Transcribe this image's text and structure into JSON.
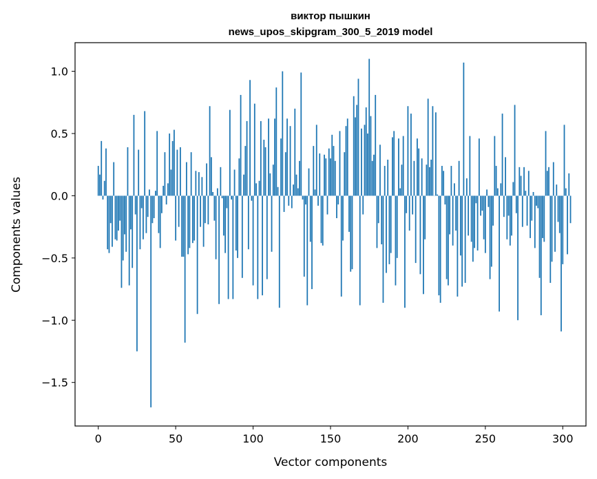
{
  "chart_data": {
    "type": "bar",
    "title": "виктор пышкин",
    "subtitle": "news_upos_skipgram_300_5_2019 model",
    "xlabel": "Vector components",
    "ylabel": "Components values",
    "xlim": [
      -15,
      315
    ],
    "ylim": [
      -1.85,
      1.23
    ],
    "xticks": [
      0,
      50,
      100,
      150,
      200,
      250,
      300
    ],
    "xtick_labels": [
      "0",
      "50",
      "100",
      "150",
      "200",
      "250",
      "300"
    ],
    "yticks": [
      -1.5,
      -1.0,
      -0.5,
      0.0,
      0.5,
      1.0
    ],
    "ytick_labels": [
      "−1.5",
      "−1.0",
      "−0.5",
      "0.0",
      "0.5",
      "1.0"
    ],
    "grid": false,
    "bar_color": "#1f77b4",
    "x_start": 0,
    "values": [
      0.24,
      0.17,
      0.44,
      -0.03,
      0.12,
      0.38,
      -0.43,
      -0.46,
      -0.22,
      -0.41,
      0.27,
      -0.35,
      -0.36,
      -0.28,
      -0.2,
      -0.74,
      -0.52,
      -0.31,
      -0.45,
      0.39,
      -0.72,
      -0.27,
      -0.58,
      0.65,
      -0.15,
      -1.25,
      0.37,
      -0.43,
      -0.1,
      -0.35,
      0.68,
      -0.3,
      -0.17,
      0.05,
      -1.7,
      -0.22,
      -0.18,
      0.04,
      0.52,
      -0.3,
      -0.42,
      -0.14,
      0.08,
      0.35,
      -0.07,
      0.1,
      0.5,
      0.21,
      0.44,
      0.53,
      -0.36,
      0.37,
      -0.25,
      0.39,
      -0.49,
      -0.49,
      -1.18,
      0.27,
      -0.47,
      -0.42,
      0.35,
      -0.38,
      -0.36,
      0.2,
      -0.95,
      0.19,
      -0.25,
      0.15,
      -0.41,
      -0.22,
      0.26,
      -0.23,
      0.72,
      0.31,
      0.03,
      -0.2,
      -0.51,
      0.06,
      -0.87,
      0.23,
      -0.02,
      -0.32,
      -0.46,
      -0.1,
      -0.83,
      0.69,
      -0.03,
      -0.83,
      0.21,
      -0.44,
      -0.5,
      0.3,
      0.81,
      -0.66,
      0.17,
      0.4,
      0.6,
      -0.43,
      0.93,
      -0.04,
      -0.72,
      0.74,
      0.1,
      -0.83,
      0.12,
      0.6,
      -0.8,
      0.45,
      0.39,
      -0.67,
      0.62,
      0.18,
      -0.45,
      0.25,
      0.62,
      0.87,
      0.07,
      -0.9,
      0.46,
      1.0,
      -0.13,
      0.35,
      0.62,
      -0.08,
      0.56,
      -0.1,
      0.09,
      0.7,
      0.17,
      0.06,
      0.28,
      0.99,
      -0.03,
      -0.65,
      -0.07,
      -0.88,
      0.22,
      -0.37,
      -0.75,
      0.4,
      0.05,
      0.57,
      -0.08,
      0.34,
      -0.38,
      -0.4,
      0.33,
      0.3,
      -0.15,
      0.38,
      0.3,
      0.49,
      0.4,
      0.28,
      -0.18,
      -0.07,
      0.52,
      -0.81,
      -0.36,
      0.35,
      0.56,
      0.62,
      -0.29,
      -0.61,
      -0.59,
      0.8,
      0.63,
      0.73,
      0.94,
      -0.88,
      0.54,
      -0.15,
      0.57,
      0.71,
      0.5,
      1.1,
      0.64,
      0.28,
      0.33,
      0.81,
      -0.42,
      -0.22,
      0.41,
      -0.39,
      -0.86,
      0.24,
      -0.62,
      0.29,
      -0.55,
      -0.46,
      0.47,
      0.52,
      -0.72,
      -0.5,
      0.46,
      0.06,
      0.25,
      0.48,
      -0.9,
      -0.14,
      0.72,
      -0.28,
      0.66,
      -0.15,
      0.28,
      -0.54,
      0.46,
      0.38,
      -0.63,
      0.3,
      -0.79,
      -0.35,
      0.25,
      0.78,
      0.23,
      0.29,
      0.72,
      0.0,
      0.67,
      0.01,
      -0.8,
      -0.86,
      0.24,
      0.2,
      -0.07,
      -0.67,
      -0.72,
      -0.31,
      0.24,
      -0.4,
      0.1,
      -0.28,
      -0.81,
      0.28,
      -0.48,
      -0.73,
      1.07,
      -0.7,
      0.14,
      -0.32,
      0.48,
      -0.37,
      -0.53,
      -0.42,
      -0.06,
      -0.44,
      0.46,
      -0.16,
      -0.12,
      -0.35,
      -0.46,
      0.05,
      -0.09,
      -0.67,
      -0.57,
      -0.24,
      0.48,
      0.24,
      0.06,
      -0.93,
      0.1,
      0.66,
      -0.17,
      0.31,
      -0.35,
      -0.16,
      -0.4,
      -0.32,
      0.11,
      0.73,
      -0.14,
      -1.0,
      0.23,
      0.16,
      -0.25,
      0.23,
      0.04,
      -0.24,
      0.2,
      -0.34,
      -0.2,
      0.03,
      -0.42,
      -0.08,
      -0.1,
      -0.66,
      -0.96,
      -0.34,
      -0.37,
      0.52,
      0.2,
      0.23,
      -0.7,
      -0.53,
      0.27,
      -0.45,
      0.09,
      -0.21,
      -0.3,
      -1.09,
      -0.55,
      0.57,
      0.06,
      -0.47,
      0.18,
      -0.22
    ]
  }
}
